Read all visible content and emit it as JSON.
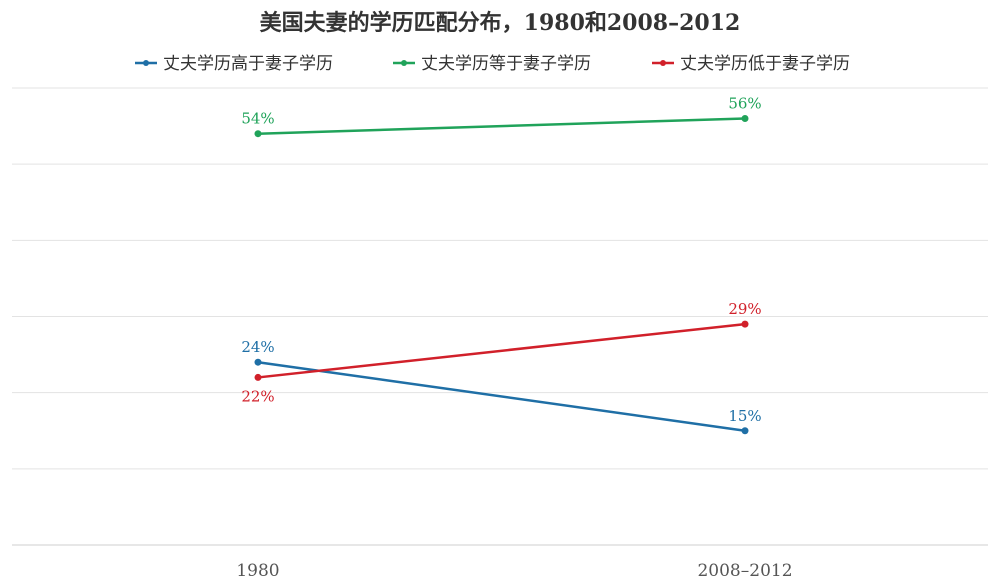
{
  "chart_data": {
    "type": "line",
    "title": "美国夫妻的学历匹配分布，1980和2008–2012",
    "categories": [
      "1980",
      "2008–2012"
    ],
    "ylim": [
      0,
      60
    ],
    "grid": true,
    "legend_position": "top",
    "series": [
      {
        "name": "丈夫学历高于妻子学历",
        "color": "#1f6fa6",
        "values": [
          24,
          15
        ],
        "labels": [
          "24%",
          "15%"
        ]
      },
      {
        "name": "丈夫学历等于妻子学历",
        "color": "#20a35a",
        "values": [
          54,
          56
        ],
        "labels": [
          "54%",
          "56%"
        ]
      },
      {
        "name": "丈夫学历低于妻子学历",
        "color": "#d1202a",
        "values": [
          22,
          29
        ],
        "labels": [
          "22%",
          "29%"
        ]
      }
    ]
  }
}
